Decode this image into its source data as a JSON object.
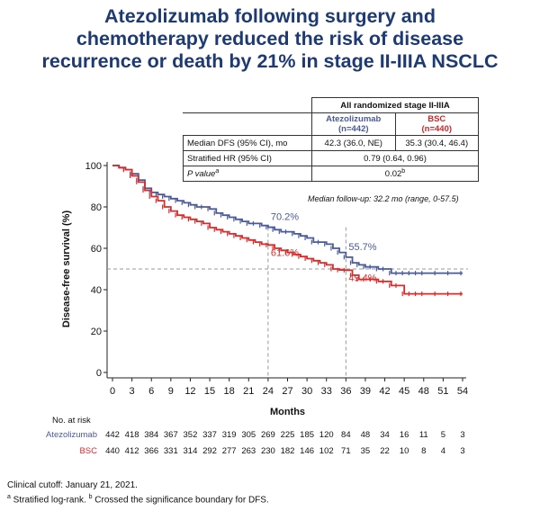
{
  "title": {
    "line1": "Atezolizumab following surgery and",
    "line2": "chemotherapy reduced the risk of disease",
    "line3": "recurrence or death by 21% in stage II-IIIA NSCLC"
  },
  "stats_table": {
    "group_header": "All randomized stage II-IIIA",
    "arm1_name": "Atezolizumab",
    "arm1_n": "(n=442)",
    "arm2_name": "BSC",
    "arm2_n": "(n=440)",
    "row1_label": "Median DFS (95% CI), mo",
    "row1_arm1": "42.3 (36.0, NE)",
    "row1_arm2": "35.3 (30.4, 46.4)",
    "row2_label": "Stratified HR (95% CI)",
    "row2_value": "0.79 (0.64, 0.96)",
    "row3_label": "P value",
    "row3_sup": "a",
    "row3_value": "0.02",
    "row3_value_sup": "b"
  },
  "followup_note": "Median follow-up: 32.2 mo (range, 0-57.5)",
  "chart_data": {
    "type": "line",
    "title": "",
    "xlabel": "Months",
    "ylabel": "Disease-free survival (%)",
    "xlim": [
      0,
      54
    ],
    "ylim": [
      0,
      100
    ],
    "xticks": [
      0,
      3,
      6,
      9,
      12,
      15,
      18,
      21,
      24,
      27,
      30,
      33,
      36,
      39,
      42,
      45,
      48,
      51,
      54
    ],
    "yticks": [
      0,
      20,
      40,
      60,
      80,
      100
    ],
    "reference_line_y": 50,
    "reference_lines_x": [
      24,
      36
    ],
    "series": [
      {
        "name": "Atezolizumab",
        "color": "#4a5a9a",
        "x": [
          0,
          1,
          2,
          3,
          4,
          5,
          6,
          7,
          8,
          9,
          10,
          11,
          12,
          13,
          14,
          15,
          16,
          17,
          18,
          19,
          20,
          21,
          22,
          23,
          24,
          25,
          26,
          27,
          28,
          29,
          30,
          31,
          32,
          33,
          34,
          35,
          36,
          37,
          38,
          39,
          40,
          41,
          42,
          43,
          44,
          45,
          46,
          47,
          48,
          50,
          52,
          54
        ],
        "y": [
          100,
          99,
          98,
          96,
          93,
          89,
          87,
          86,
          85,
          84,
          83,
          82,
          81,
          80,
          80,
          79,
          77,
          76,
          75,
          74,
          73,
          72,
          72,
          71,
          70.2,
          69,
          68,
          68,
          67,
          66,
          65,
          63,
          63,
          62,
          60,
          58,
          55.7,
          53,
          52,
          51,
          51,
          50,
          50,
          48,
          48,
          48,
          48,
          48,
          48,
          48,
          48,
          48
        ]
      },
      {
        "name": "BSC",
        "color": "#d62c2c",
        "x": [
          0,
          1,
          2,
          3,
          4,
          5,
          6,
          7,
          8,
          9,
          10,
          11,
          12,
          13,
          14,
          15,
          16,
          17,
          18,
          19,
          20,
          21,
          22,
          23,
          24,
          25,
          26,
          27,
          28,
          29,
          30,
          31,
          32,
          33,
          34,
          35,
          36,
          37,
          38,
          39,
          40,
          41,
          42,
          43,
          44,
          45,
          46,
          47,
          48,
          50,
          52,
          54
        ],
        "y": [
          100,
          99,
          98,
          95,
          92,
          88,
          85,
          83,
          80,
          78,
          76,
          75,
          74,
          73,
          72,
          70,
          69,
          68,
          67,
          66,
          65,
          64,
          63,
          62,
          61.6,
          60,
          59,
          58,
          57,
          56,
          55,
          54,
          53,
          52,
          50,
          49.5,
          49.4,
          47,
          45,
          45,
          45,
          44,
          44,
          42,
          42,
          38,
          38,
          38,
          38,
          38,
          38,
          38
        ]
      }
    ],
    "annotations": [
      {
        "label": "70.2%",
        "series": "Atezolizumab",
        "x": 24,
        "y": 70.2
      },
      {
        "label": "61.6%",
        "series": "BSC",
        "x": 24,
        "y": 61.6
      },
      {
        "label": "55.7%",
        "series": "Atezolizumab",
        "x": 36,
        "y": 55.7
      },
      {
        "label": "49.4%",
        "series": "BSC",
        "x": 36,
        "y": 49.4
      }
    ]
  },
  "risk_table": {
    "header": "No. at risk",
    "times": [
      0,
      3,
      6,
      9,
      12,
      15,
      18,
      21,
      24,
      27,
      30,
      33,
      36,
      39,
      42,
      45,
      48,
      51,
      54
    ],
    "rows": [
      {
        "label": "Atezolizumab",
        "color": "#4a5a9a",
        "values": [
          "442",
          "418",
          "384",
          "367",
          "352",
          "337",
          "319",
          "305",
          "269",
          "225",
          "185",
          "120",
          "84",
          "48",
          "34",
          "16",
          "11",
          "5",
          "3"
        ]
      },
      {
        "label": "BSC",
        "color": "#d62c2c",
        "values": [
          "440",
          "412",
          "366",
          "331",
          "314",
          "292",
          "277",
          "263",
          "230",
          "182",
          "146",
          "102",
          "71",
          "35",
          "22",
          "10",
          "8",
          "4",
          "3"
        ]
      }
    ]
  },
  "footer": {
    "line1": "Clinical cutoff: January 21, 2021.",
    "line2_sup_a": "a",
    "line2_text_a": " Stratified log-rank. ",
    "line2_sup_b": "b",
    "line2_text_b": " Crossed the significance boundary for DFS."
  }
}
